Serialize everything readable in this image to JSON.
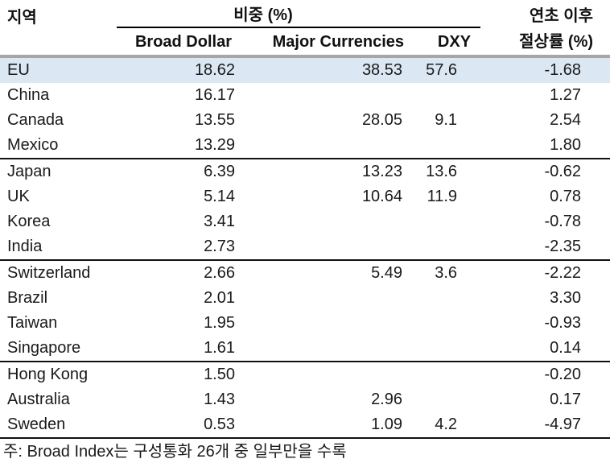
{
  "colors": {
    "highlight_row": "#dbe8f4",
    "header_rule": "#a6a6a6",
    "group_rule": "#111111",
    "text": "#1a1a1a"
  },
  "header": {
    "region_label": "지역",
    "weight_group_label": "비중 (%)",
    "ytd_label_line1": "연초 이후",
    "ytd_label_line2": "절상률 (%)",
    "broad_dollar": "Broad Dollar",
    "major_currencies": "Major Currencies",
    "dxy": "DXY"
  },
  "table": {
    "rows": [
      {
        "region": "EU",
        "broad_dollar": "18.62",
        "major_currencies": "38.53",
        "dxy": "57.6",
        "ytd_change": "-1.68",
        "highlight": true
      },
      {
        "region": "China",
        "broad_dollar": "16.17",
        "major_currencies": "",
        "dxy": "",
        "ytd_change": "1.27"
      },
      {
        "region": "Canada",
        "broad_dollar": "13.55",
        "major_currencies": "28.05",
        "dxy": "9.1",
        "ytd_change": "2.54"
      },
      {
        "region": "Mexico",
        "broad_dollar": "13.29",
        "major_currencies": "",
        "dxy": "",
        "ytd_change": "1.80"
      },
      {
        "region": "Japan",
        "broad_dollar": "6.39",
        "major_currencies": "13.23",
        "dxy": "13.6",
        "ytd_change": "-0.62",
        "rule_above": true
      },
      {
        "region": "UK",
        "broad_dollar": "5.14",
        "major_currencies": "10.64",
        "dxy": "11.9",
        "ytd_change": "0.78"
      },
      {
        "region": "Korea",
        "broad_dollar": "3.41",
        "major_currencies": "",
        "dxy": "",
        "ytd_change": "-0.78"
      },
      {
        "region": "India",
        "broad_dollar": "2.73",
        "major_currencies": "",
        "dxy": "",
        "ytd_change": "-2.35"
      },
      {
        "region": "Switzerland",
        "broad_dollar": "2.66",
        "major_currencies": "5.49",
        "dxy": "3.6",
        "ytd_change": "-2.22",
        "rule_above": true
      },
      {
        "region": "Brazil",
        "broad_dollar": "2.01",
        "major_currencies": "",
        "dxy": "",
        "ytd_change": "3.30"
      },
      {
        "region": "Taiwan",
        "broad_dollar": "1.95",
        "major_currencies": "",
        "dxy": "",
        "ytd_change": "-0.93"
      },
      {
        "region": "Singapore",
        "broad_dollar": "1.61",
        "major_currencies": "",
        "dxy": "",
        "ytd_change": "0.14"
      },
      {
        "region": "Hong Kong",
        "broad_dollar": "1.50",
        "major_currencies": "",
        "dxy": "",
        "ytd_change": "-0.20",
        "rule_above": true
      },
      {
        "region": "Australia",
        "broad_dollar": "1.43",
        "major_currencies": "2.96",
        "dxy": "",
        "ytd_change": "0.17"
      },
      {
        "region": "Sweden",
        "broad_dollar": "0.53",
        "major_currencies": "1.09",
        "dxy": "4.2",
        "ytd_change": "-4.97"
      }
    ]
  },
  "footnote": "주: Broad Index는 구성통화 26개 중 일부만을 수록",
  "chart_data": {
    "type": "table",
    "title": "",
    "columns": [
      "지역",
      "비중 (%) - Broad Dollar",
      "비중 (%) - Major Currencies",
      "비중 (%) - DXY",
      "연초 이후 절상률 (%)"
    ],
    "rows": [
      [
        "EU",
        18.62,
        38.53,
        57.6,
        -1.68
      ],
      [
        "China",
        16.17,
        null,
        null,
        1.27
      ],
      [
        "Canada",
        13.55,
        28.05,
        9.1,
        2.54
      ],
      [
        "Mexico",
        13.29,
        null,
        null,
        1.8
      ],
      [
        "Japan",
        6.39,
        13.23,
        13.6,
        -0.62
      ],
      [
        "UK",
        5.14,
        10.64,
        11.9,
        0.78
      ],
      [
        "Korea",
        3.41,
        null,
        null,
        -0.78
      ],
      [
        "India",
        2.73,
        null,
        null,
        -2.35
      ],
      [
        "Switzerland",
        2.66,
        5.49,
        3.6,
        -2.22
      ],
      [
        "Brazil",
        2.01,
        null,
        null,
        3.3
      ],
      [
        "Taiwan",
        1.95,
        null,
        null,
        -0.93
      ],
      [
        "Singapore",
        1.61,
        null,
        null,
        0.14
      ],
      [
        "Hong Kong",
        1.5,
        null,
        null,
        -0.2
      ],
      [
        "Australia",
        1.43,
        2.96,
        null,
        0.17
      ],
      [
        "Sweden",
        0.53,
        1.09,
        4.2,
        -4.97
      ]
    ],
    "note": "주: Broad Index는 구성통화 26개 중 일부만을 수록",
    "highlighted_row": "EU",
    "group_breaks_before": [
      "Japan",
      "Switzerland",
      "Hong Kong"
    ]
  }
}
